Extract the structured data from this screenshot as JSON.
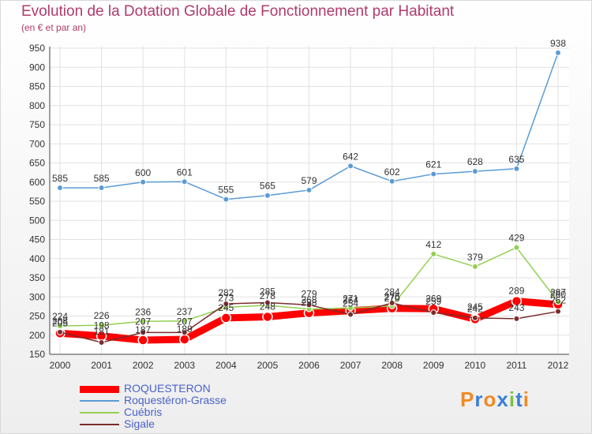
{
  "chart_data": {
    "type": "line",
    "title": "Evolution de la Dotation Globale de Fonctionnement par Habitant",
    "subtitle": "(en € et par an)",
    "x": [
      "2000",
      "2001",
      "2002",
      "2003",
      "2004",
      "2005",
      "2006",
      "2007",
      "2008",
      "2009",
      "2010",
      "2011",
      "2012"
    ],
    "ylim": [
      150,
      950
    ],
    "yticks": [
      150,
      200,
      250,
      300,
      350,
      400,
      450,
      500,
      550,
      600,
      650,
      700,
      750,
      800,
      850,
      900,
      950
    ],
    "grid": true,
    "legend_position": "bottom-left",
    "series": [
      {
        "name": "ROQUESTERON",
        "color": "#ff0000",
        "values": [
          205,
          198,
          187,
          189,
          245,
          248,
          258,
          264,
          270,
          269,
          242,
          289,
          280
        ],
        "labels": [
          "205",
          "198",
          "187",
          "189",
          "245",
          "248",
          "258",
          "264",
          "270",
          "269",
          "242",
          "289",
          "280"
        ]
      },
      {
        "name": "Roquestéron-Grasse",
        "color": "#5b9bd5",
        "values": [
          585,
          585,
          600,
          601,
          555,
          565,
          579,
          642,
          602,
          621,
          628,
          635,
          938
        ],
        "labels": [
          "585",
          "585",
          "600",
          "601",
          "555",
          "565",
          "579",
          "642",
          "602",
          "621",
          "628",
          "635",
          "938"
        ]
      },
      {
        "name": "Cuébris",
        "color": "#92d050",
        "values": [
          224,
          226,
          236,
          237,
          273,
          278,
          268,
          271,
          276,
          412,
          379,
          429,
          287
        ],
        "labels": [
          "224",
          "226",
          "236",
          "237",
          "273",
          "278",
          "268",
          "271",
          "276",
          "412",
          "379",
          "429",
          "287"
        ]
      },
      {
        "name": "Sigale",
        "color": "#7b2c2c",
        "values": [
          208,
          181,
          207,
          207,
          282,
          285,
          279,
          254,
          284,
          259,
          245,
          243,
          262
        ],
        "labels": [
          "208",
          "181",
          "207",
          "207",
          "282",
          "285",
          "279",
          "254",
          "284",
          "259",
          "245",
          "243",
          "262"
        ]
      }
    ]
  },
  "legend": {
    "items": [
      {
        "label": "ROQUESTERON",
        "color": "#ff0000",
        "text_color": "#4a63c8",
        "thickness": 9
      },
      {
        "label": "Roquestéron-Grasse",
        "color": "#5b9bd5",
        "text_color": "#4a63c8",
        "thickness": 2
      },
      {
        "label": "Cuébris",
        "color": "#92d050",
        "text_color": "#4a63c8",
        "thickness": 2
      },
      {
        "label": "Sigale",
        "color": "#7b2c2c",
        "text_color": "#4a63c8",
        "thickness": 2
      }
    ]
  },
  "logo": {
    "text": "Proxiti",
    "letter_colors": [
      "#f08a24",
      "#3a7fd8",
      "#f08a24",
      "#3a7fd8",
      "#7cc242",
      "#3a7fd8",
      "#f08a24"
    ]
  }
}
